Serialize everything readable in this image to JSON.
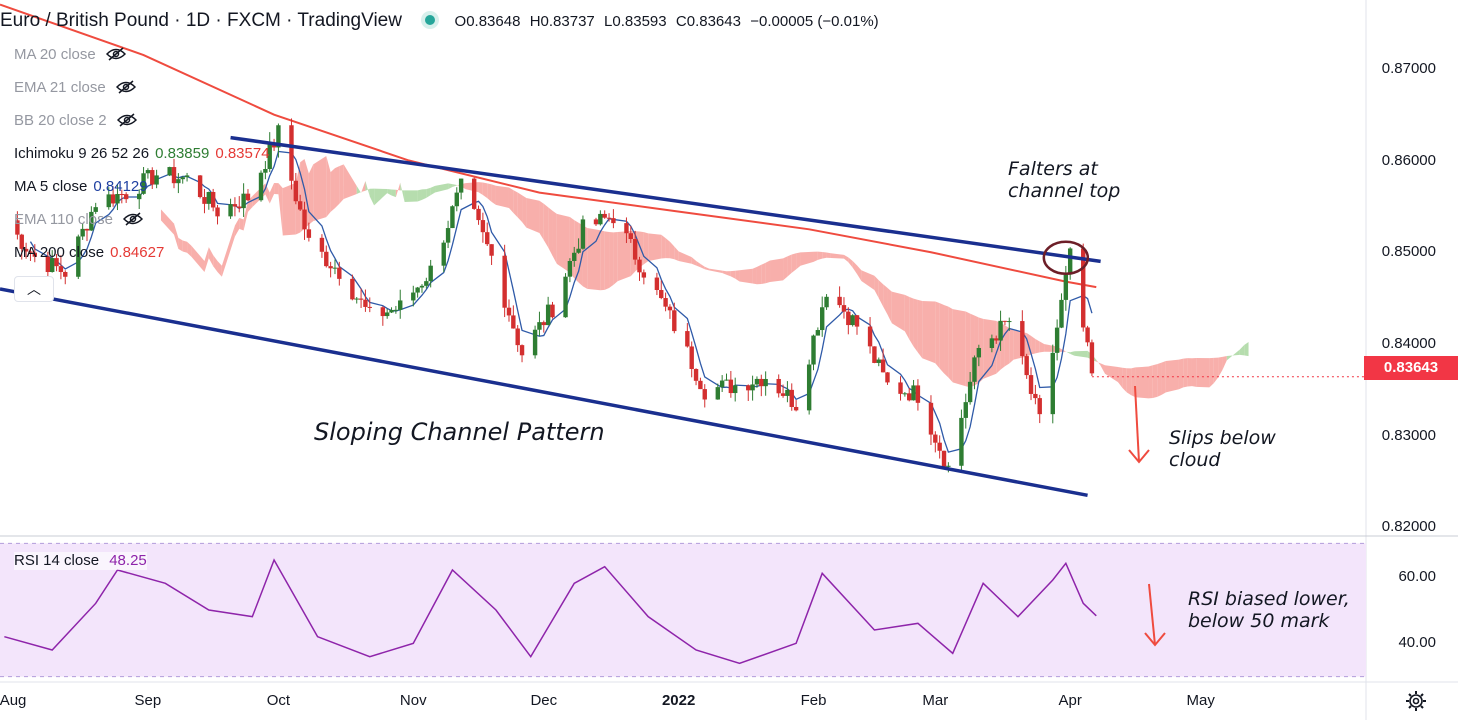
{
  "header": {
    "title": "Euro / British Pound · 1D · FXCM · TradingView",
    "status_color": "#26a69a",
    "open": "O0.83648",
    "high": "H0.83737",
    "low": "L0.83593",
    "close": "C0.83643",
    "change": "−0.00005 (−0.01%)"
  },
  "indicators": [
    {
      "label": "MA 20 close",
      "values": [],
      "hidden": true
    },
    {
      "label": "EMA 21 close",
      "values": [],
      "hidden": true
    },
    {
      "label": "BB 20 close 2",
      "values": [],
      "hidden": true
    },
    {
      "label": "Ichimoku 9 26 52 26",
      "values": [
        {
          "v": "0.83859",
          "color": "#2e7d32"
        },
        {
          "v": "0.83574",
          "color": "#e53935"
        }
      ],
      "hidden": false
    },
    {
      "label": "MA 5 close",
      "values": [
        {
          "v": "0.84129",
          "color": "#1e3fa0"
        }
      ],
      "hidden": false
    },
    {
      "label": "EMA 110 close",
      "values": [],
      "hidden": true
    },
    {
      "label": "MA 200 close",
      "values": [
        {
          "v": "0.84627",
          "color": "#e53935"
        }
      ],
      "hidden": false
    }
  ],
  "colors": {
    "channel": "#1a2f8f",
    "ma200": "#ef4b3f",
    "ma5": "#2f5aa8",
    "up_candle": "#2e7d32",
    "down_candle": "#d32f2f",
    "cloud_bear": "#f7a19c",
    "cloud_bull": "#a9d7a0",
    "rsi_line": "#8e24aa",
    "rsi_band": "#f3e5fb",
    "price_tag": "#f23645"
  },
  "annotations": {
    "falters": [
      "Falters at",
      "channel top"
    ],
    "channel_pattern": "Sloping Channel Pattern",
    "slips": [
      "Slips below",
      "cloud"
    ],
    "rsi_note": [
      "RSI biased lower,",
      "below 50 mark"
    ]
  },
  "price_tag": "0.83643",
  "rsi": {
    "label": "RSI 14 close",
    "value": "48.25"
  },
  "chart_data": {
    "type": "candlestick",
    "title": "Euro / British Pound · 1D · FXCM · TradingView",
    "y_ticks": [
      "0.87000",
      "0.86000",
      "0.85000",
      "0.84000",
      "0.83000",
      "0.82000"
    ],
    "y_range": [
      0.8195,
      0.8775
    ],
    "x_ticks": [
      "Aug",
      "Sep",
      "Oct",
      "Nov",
      "Dec",
      "2022",
      "Feb",
      "Mar",
      "Apr",
      "May"
    ],
    "x_tick_dates": [
      "2021-08-01",
      "2021-09-01",
      "2021-10-01",
      "2021-11-01",
      "2021-12-01",
      "2022-01-01",
      "2022-02-01",
      "2022-03-01",
      "2022-04-01",
      "2022-05-01"
    ],
    "x_range": [
      "2021-07-29",
      "2022-06-08"
    ],
    "price_path": [
      [
        "2021-07-30",
        0.8535
      ],
      [
        "2021-08-06",
        0.8495
      ],
      [
        "2021-08-13",
        0.8478
      ],
      [
        "2021-08-20",
        0.8555
      ],
      [
        "2021-08-27",
        0.8565
      ],
      [
        "2021-09-03",
        0.8585
      ],
      [
        "2021-09-10",
        0.858
      ],
      [
        "2021-09-17",
        0.8545
      ],
      [
        "2021-09-24",
        0.856
      ],
      [
        "2021-10-01",
        0.863
      ],
      [
        "2021-10-08",
        0.851
      ],
      [
        "2021-10-15",
        0.848
      ],
      [
        "2021-10-22",
        0.843
      ],
      [
        "2021-10-29",
        0.844
      ],
      [
        "2021-11-05",
        0.848
      ],
      [
        "2021-11-12",
        0.857
      ],
      [
        "2021-11-19",
        0.8495
      ],
      [
        "2021-11-26",
        0.839
      ],
      [
        "2021-12-03",
        0.844
      ],
      [
        "2021-12-10",
        0.8525
      ],
      [
        "2021-12-17",
        0.854
      ],
      [
        "2021-12-24",
        0.848
      ],
      [
        "2021-12-31",
        0.842
      ],
      [
        "2022-01-07",
        0.835
      ],
      [
        "2022-01-14",
        0.8355
      ],
      [
        "2022-01-21",
        0.8365
      ],
      [
        "2022-01-28",
        0.8335
      ],
      [
        "2022-02-04",
        0.846
      ],
      [
        "2022-02-11",
        0.842
      ],
      [
        "2022-02-18",
        0.8355
      ],
      [
        "2022-02-25",
        0.8345
      ],
      [
        "2022-03-04",
        0.8265
      ],
      [
        "2022-03-11",
        0.8395
      ],
      [
        "2022-03-18",
        0.8425
      ],
      [
        "2022-03-25",
        0.8315
      ],
      [
        "2022-04-01",
        0.8495
      ],
      [
        "2022-04-06",
        0.8365
      ]
    ],
    "ma200": [
      [
        "2021-07-29",
        0.877
      ],
      [
        "2021-08-31",
        0.8715
      ],
      [
        "2021-09-30",
        0.865
      ],
      [
        "2021-10-31",
        0.86
      ],
      [
        "2021-11-30",
        0.8565
      ],
      [
        "2021-12-31",
        0.8545
      ],
      [
        "2022-01-31",
        0.8525
      ],
      [
        "2022-02-28",
        0.85
      ],
      [
        "2022-03-31",
        0.8468
      ],
      [
        "2022-04-07",
        0.8462
      ]
    ],
    "channel_top": [
      [
        "2021-09-20",
        0.8625
      ],
      [
        "2022-04-08",
        0.849
      ]
    ],
    "channel_bottom": [
      [
        "2021-07-29",
        0.846
      ],
      [
        "2022-04-05",
        0.8235
      ]
    ],
    "rsi_ticks": [
      "60.00",
      "40.00"
    ],
    "rsi_range": [
      29,
      71
    ],
    "rsi_band": [
      30,
      70
    ],
    "rsi_series": [
      [
        "2021-07-30",
        42
      ],
      [
        "2021-08-10",
        38
      ],
      [
        "2021-08-20",
        52
      ],
      [
        "2021-08-25",
        62
      ],
      [
        "2021-09-05",
        58
      ],
      [
        "2021-09-15",
        50
      ],
      [
        "2021-09-25",
        48
      ],
      [
        "2021-09-30",
        65
      ],
      [
        "2021-10-10",
        42
      ],
      [
        "2021-10-22",
        36
      ],
      [
        "2021-11-01",
        40
      ],
      [
        "2021-11-10",
        62
      ],
      [
        "2021-11-20",
        50
      ],
      [
        "2021-11-28",
        36
      ],
      [
        "2021-12-08",
        58
      ],
      [
        "2021-12-15",
        63
      ],
      [
        "2021-12-25",
        48
      ],
      [
        "2022-01-05",
        38
      ],
      [
        "2022-01-15",
        34
      ],
      [
        "2022-01-28",
        40
      ],
      [
        "2022-02-03",
        61
      ],
      [
        "2022-02-15",
        44
      ],
      [
        "2022-02-25",
        46
      ],
      [
        "2022-03-05",
        37
      ],
      [
        "2022-03-12",
        58
      ],
      [
        "2022-03-20",
        48
      ],
      [
        "2022-03-28",
        59
      ],
      [
        "2022-03-31",
        64
      ],
      [
        "2022-04-04",
        52
      ],
      [
        "2022-04-07",
        48.25
      ]
    ]
  },
  "footer": {
    "settings_icon": "gear-icon"
  }
}
